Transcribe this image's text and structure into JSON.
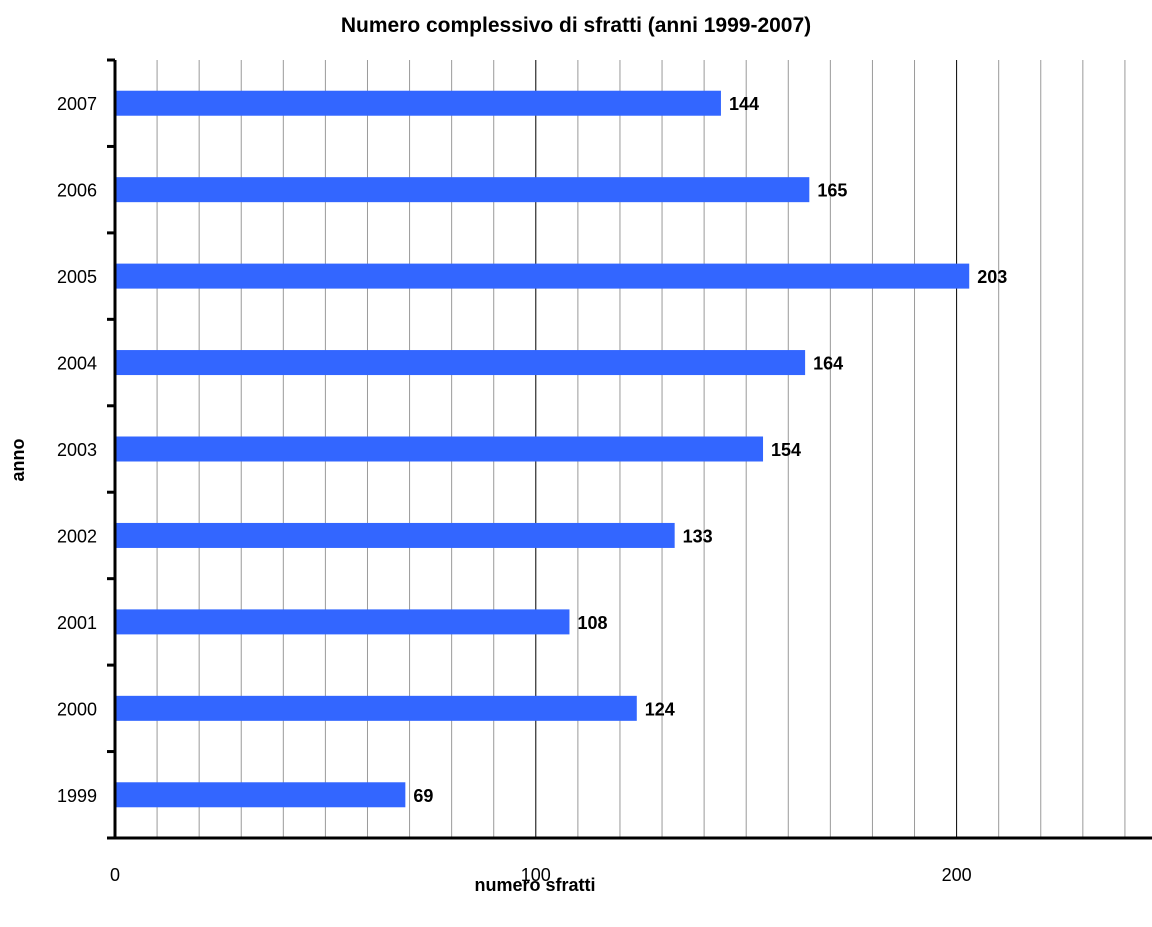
{
  "chart_data": {
    "type": "bar",
    "orientation": "horizontal",
    "title": "Numero complessivo di sfratti (anni 1999-2007)",
    "xlabel": "numero sfratti",
    "ylabel": "anno",
    "categories": [
      "1999",
      "2000",
      "2001",
      "2002",
      "2003",
      "2004",
      "2005",
      "2006",
      "2007"
    ],
    "values": [
      69,
      124,
      108,
      133,
      154,
      164,
      203,
      165,
      144
    ],
    "xlim": [
      0,
      250
    ],
    "major_ticks": [
      0,
      100,
      200
    ],
    "minor_tick_step": 10,
    "grid": true,
    "bar_color": "#3366FF",
    "data_labels": true,
    "legend": "none"
  }
}
